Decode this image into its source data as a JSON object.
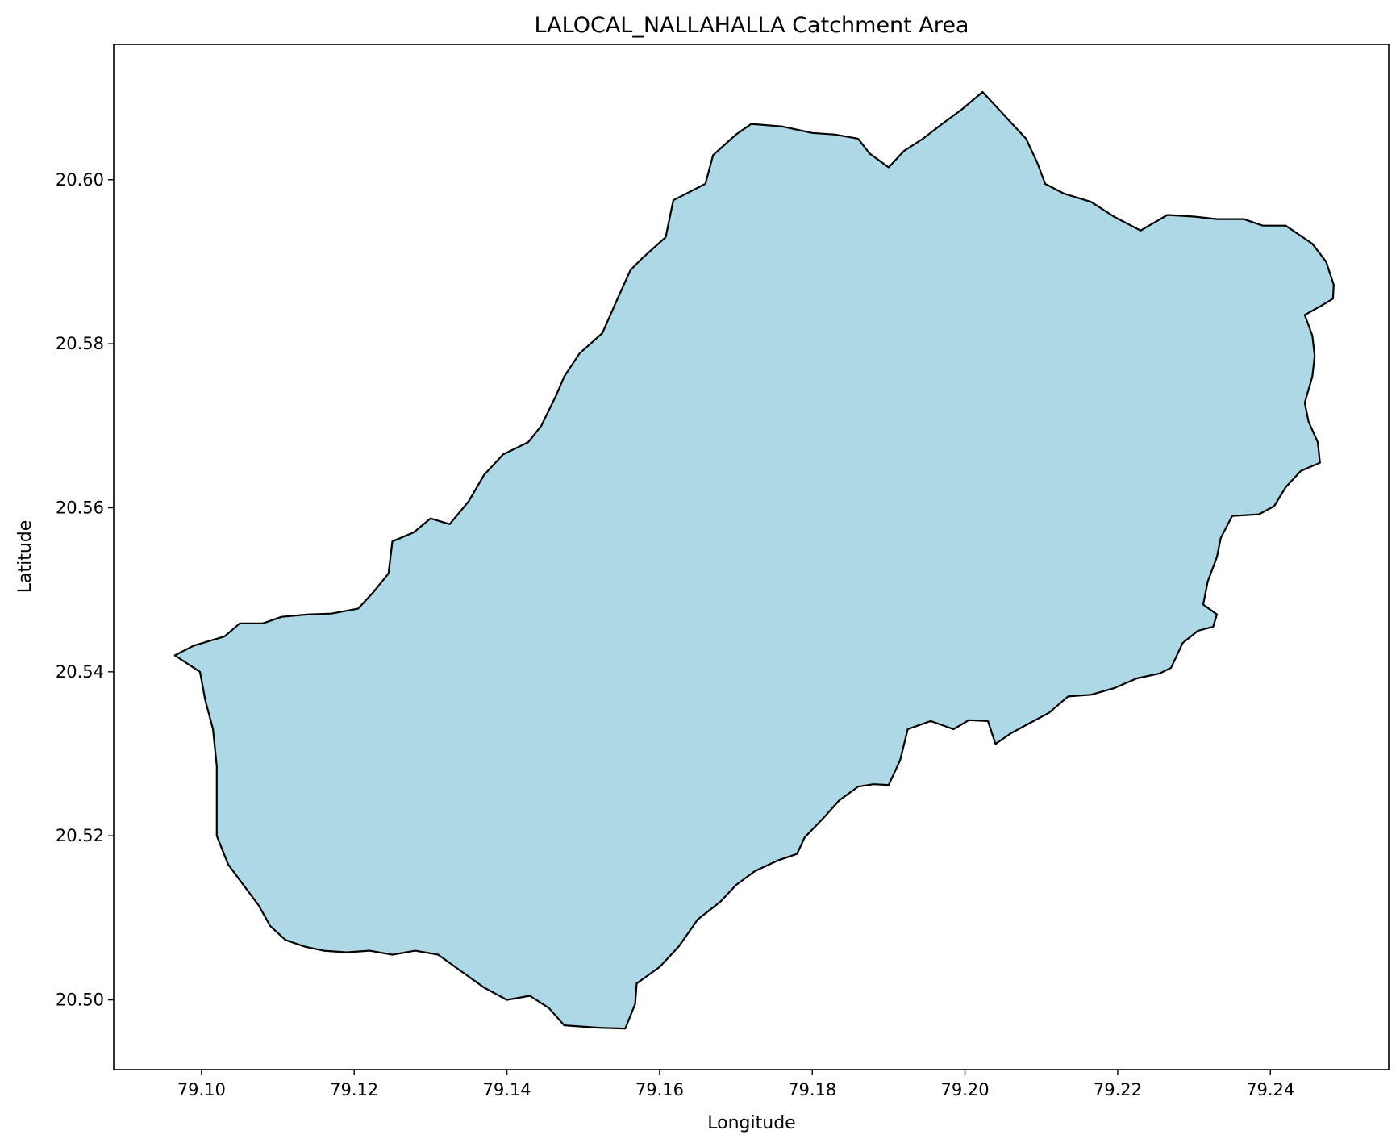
{
  "chart_data": {
    "type": "map",
    "title": "LALOCAL_NALLAHALLA Catchment Area",
    "xlabel": "Longitude",
    "ylabel": "Latitude",
    "xlim": [
      79.0885,
      79.2555
    ],
    "ylim": [
      20.4915,
      20.6165
    ],
    "x_ticks": [
      "79.10",
      "79.12",
      "79.14",
      "79.16",
      "79.18",
      "79.20",
      "79.22",
      "79.24"
    ],
    "x_tick_values": [
      79.1,
      79.12,
      79.14,
      79.16,
      79.18,
      79.2,
      79.22,
      79.24
    ],
    "y_ticks": [
      "20.50",
      "20.52",
      "20.54",
      "20.56",
      "20.58",
      "20.60"
    ],
    "y_tick_values": [
      20.5,
      20.52,
      20.54,
      20.56,
      20.58,
      20.6
    ],
    "grid": false,
    "fill_color": "#add8e6",
    "edge_color": "#000000",
    "polygon": [
      [
        79.0965,
        20.542
      ],
      [
        79.099,
        20.5432
      ],
      [
        79.103,
        20.5443
      ],
      [
        79.105,
        20.5459
      ],
      [
        79.108,
        20.5459
      ],
      [
        79.1105,
        20.5467
      ],
      [
        79.114,
        20.547
      ],
      [
        79.117,
        20.5471
      ],
      [
        79.1205,
        20.5477
      ],
      [
        79.1225,
        20.5497
      ],
      [
        79.1245,
        20.552
      ],
      [
        79.125,
        20.5559
      ],
      [
        79.1278,
        20.557
      ],
      [
        79.13,
        20.5587
      ],
      [
        79.1325,
        20.558
      ],
      [
        79.135,
        20.5608
      ],
      [
        79.137,
        20.564
      ],
      [
        79.1395,
        20.5665
      ],
      [
        79.1428,
        20.568
      ],
      [
        79.1445,
        20.57
      ],
      [
        79.1465,
        20.5738
      ],
      [
        79.1475,
        20.576
      ],
      [
        79.1495,
        20.5788
      ],
      [
        79.1525,
        20.5813
      ],
      [
        79.1545,
        20.5855
      ],
      [
        79.1562,
        20.589
      ],
      [
        79.1578,
        20.5905
      ],
      [
        79.1608,
        20.593
      ],
      [
        79.1618,
        20.5975
      ],
      [
        79.166,
        20.5995
      ],
      [
        79.167,
        20.603
      ],
      [
        79.17,
        20.6055
      ],
      [
        79.172,
        20.6068
      ],
      [
        79.176,
        20.6065
      ],
      [
        79.18,
        20.6057
      ],
      [
        79.183,
        20.6055
      ],
      [
        79.186,
        20.605
      ],
      [
        79.1875,
        20.6032
      ],
      [
        79.19,
        20.6015
      ],
      [
        79.192,
        20.6035
      ],
      [
        79.1945,
        20.605
      ],
      [
        79.197,
        20.6068
      ],
      [
        79.1995,
        20.6085
      ],
      [
        79.2023,
        20.6107
      ],
      [
        79.2045,
        20.6085
      ],
      [
        79.2065,
        20.6065
      ],
      [
        79.208,
        20.605
      ],
      [
        79.2095,
        20.602
      ],
      [
        79.2105,
        20.5995
      ],
      [
        79.213,
        20.5983
      ],
      [
        79.2165,
        20.5973
      ],
      [
        79.2195,
        20.5955
      ],
      [
        79.223,
        20.5938
      ],
      [
        79.2265,
        20.5957
      ],
      [
        79.23,
        20.5955
      ],
      [
        79.233,
        20.5952
      ],
      [
        79.2365,
        20.5952
      ],
      [
        79.239,
        20.5944
      ],
      [
        79.242,
        20.5944
      ],
      [
        79.2455,
        20.5922
      ],
      [
        79.2473,
        20.59
      ],
      [
        79.2483,
        20.5872
      ],
      [
        79.2482,
        20.5855
      ],
      [
        79.2468,
        20.5847
      ],
      [
        79.2445,
        20.5835
      ],
      [
        79.2455,
        20.581
      ],
      [
        79.2458,
        20.5785
      ],
      [
        79.2455,
        20.576
      ],
      [
        79.2445,
        20.5728
      ],
      [
        79.245,
        20.5705
      ],
      [
        79.2462,
        20.568
      ],
      [
        79.2465,
        20.5655
      ],
      [
        79.244,
        20.5645
      ],
      [
        79.242,
        20.5625
      ],
      [
        79.2405,
        20.5602
      ],
      [
        79.2385,
        20.5592
      ],
      [
        79.235,
        20.559
      ],
      [
        79.2335,
        20.5563
      ],
      [
        79.233,
        20.554
      ],
      [
        79.2318,
        20.551
      ],
      [
        79.2312,
        20.5482
      ],
      [
        79.233,
        20.547
      ],
      [
        79.2325,
        20.5455
      ],
      [
        79.2305,
        20.545
      ],
      [
        79.2285,
        20.5435
      ],
      [
        79.227,
        20.5405
      ],
      [
        79.2255,
        20.5398
      ],
      [
        79.2225,
        20.5392
      ],
      [
        79.2195,
        20.538
      ],
      [
        79.2165,
        20.5372
      ],
      [
        79.2135,
        20.537
      ],
      [
        79.211,
        20.535
      ],
      [
        79.208,
        20.5335
      ],
      [
        79.206,
        20.5325
      ],
      [
        79.204,
        20.5312
      ],
      [
        79.203,
        20.534
      ],
      [
        79.2005,
        20.5341
      ],
      [
        79.1985,
        20.533
      ],
      [
        79.1955,
        20.534
      ],
      [
        79.1925,
        20.533
      ],
      [
        79.1915,
        20.5292
      ],
      [
        79.19,
        20.5262
      ],
      [
        79.188,
        20.5263
      ],
      [
        79.186,
        20.526
      ],
      [
        79.1835,
        20.5243
      ],
      [
        79.1815,
        20.5222
      ],
      [
        79.179,
        20.5198
      ],
      [
        79.178,
        20.5178
      ],
      [
        79.1755,
        20.517
      ],
      [
        79.1725,
        20.5157
      ],
      [
        79.17,
        20.514
      ],
      [
        79.168,
        20.512
      ],
      [
        79.165,
        20.5098
      ],
      [
        79.1625,
        20.5065
      ],
      [
        79.16,
        20.504
      ],
      [
        79.157,
        20.502
      ],
      [
        79.1568,
        20.4995
      ],
      [
        79.1555,
        20.4965
      ],
      [
        79.152,
        20.4966
      ],
      [
        79.1475,
        20.4969
      ],
      [
        79.1455,
        20.499
      ],
      [
        79.143,
        20.5005
      ],
      [
        79.14,
        20.5
      ],
      [
        79.137,
        20.5015
      ],
      [
        79.134,
        20.5035
      ],
      [
        79.131,
        20.5055
      ],
      [
        79.128,
        20.506
      ],
      [
        79.125,
        20.5055
      ],
      [
        79.122,
        20.506
      ],
      [
        79.119,
        20.5058
      ],
      [
        79.116,
        20.506
      ],
      [
        79.1135,
        20.5065
      ],
      [
        79.111,
        20.5073
      ],
      [
        79.109,
        20.509
      ],
      [
        79.1075,
        20.5115
      ],
      [
        79.1055,
        20.514
      ],
      [
        79.1035,
        20.5165
      ],
      [
        79.102,
        20.52
      ],
      [
        79.102,
        20.524
      ],
      [
        79.102,
        20.5285
      ],
      [
        79.1015,
        20.533
      ],
      [
        79.1005,
        20.5365
      ],
      [
        79.0998,
        20.54
      ]
    ]
  }
}
